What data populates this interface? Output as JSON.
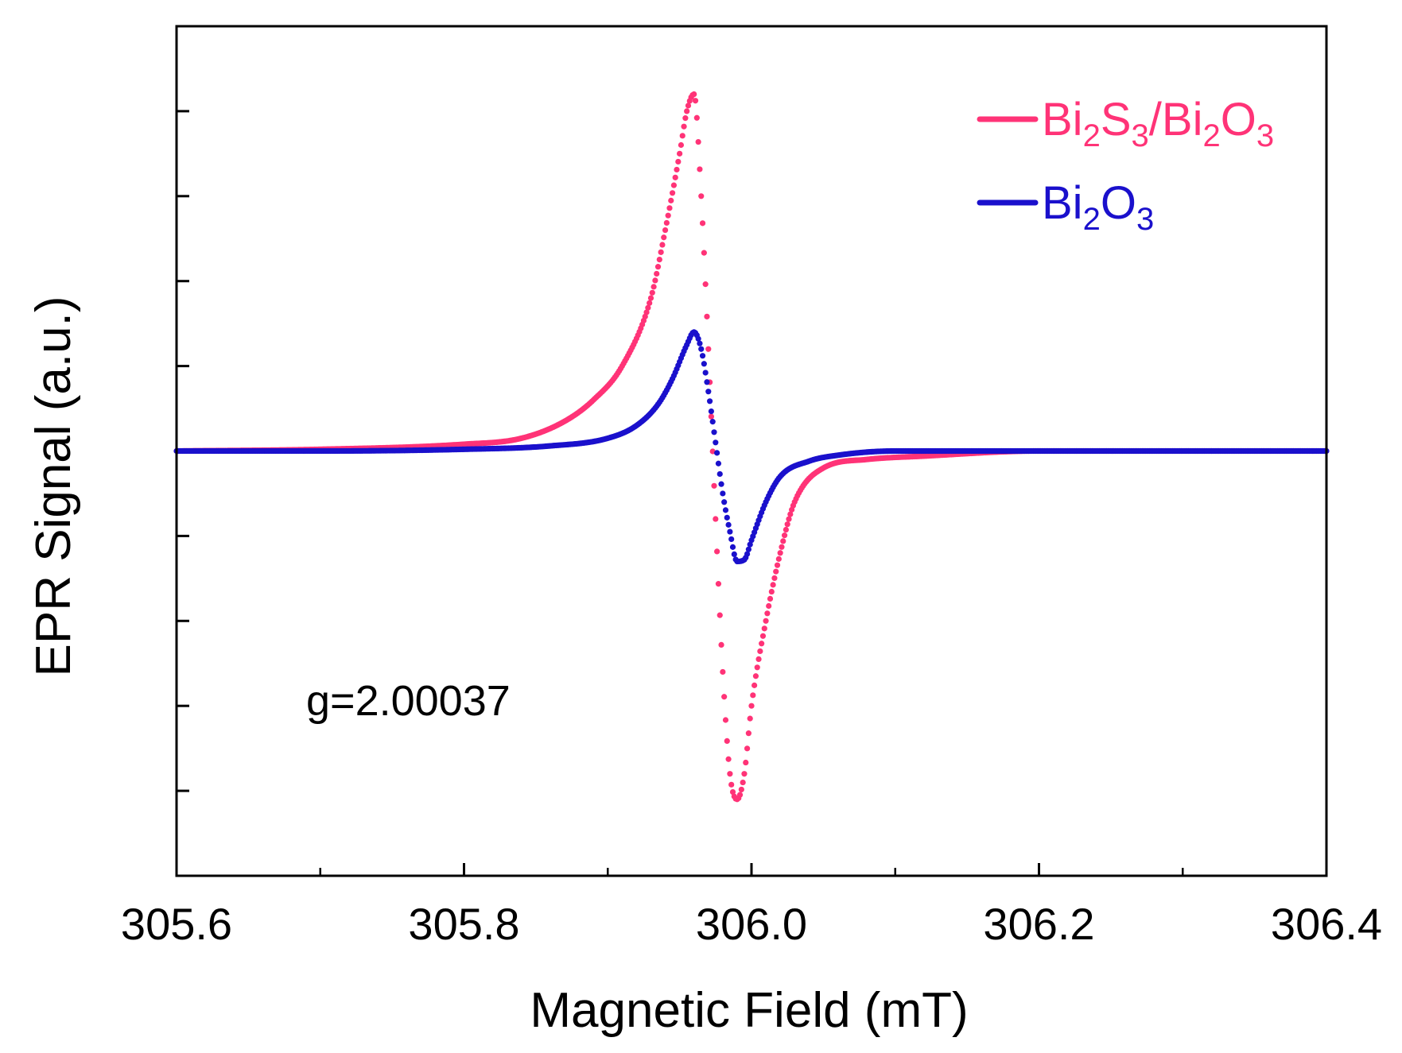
{
  "chart_data": {
    "type": "line",
    "title": "",
    "xlabel": "Magnetic Field (mT)",
    "ylabel": "EPR Signal (a.u.)",
    "xlim": [
      305.6,
      306.4
    ],
    "ylim": [
      -5,
      5
    ],
    "x_ticks": [
      305.6,
      305.8,
      306.0,
      306.2,
      306.4
    ],
    "x_tick_labels": [
      "305.6",
      "305.8",
      "306.0",
      "306.2",
      "306.4"
    ],
    "x_minor_ticks": [
      305.7,
      305.9,
      306.1,
      306.3
    ],
    "y_ticks": [
      4,
      3,
      2,
      1,
      -1,
      -2,
      -3,
      -4
    ],
    "y_tick_labels_shown": false,
    "grid": false,
    "legend_position": "top-right",
    "annotation": "g=2.00037",
    "series": [
      {
        "name": "Bi2S3/Bi2O3",
        "color": "#ff3377",
        "x": [
          305.6,
          305.7,
          305.8,
          305.84,
          305.87,
          305.89,
          305.91,
          305.93,
          305.94,
          305.95,
          305.955,
          305.96,
          305.965,
          305.97,
          305.975,
          305.98,
          305.985,
          305.99,
          305.995,
          306.0,
          306.01,
          306.02,
          306.03,
          306.05,
          306.08,
          306.12,
          306.2,
          306.3,
          306.4
        ],
        "y": [
          0,
          0.02,
          0.08,
          0.15,
          0.35,
          0.6,
          1.0,
          1.8,
          2.6,
          3.5,
          4.0,
          4.2,
          3.0,
          1.2,
          -0.8,
          -2.6,
          -3.8,
          -4.1,
          -3.8,
          -3.0,
          -2.0,
          -1.2,
          -0.6,
          -0.2,
          -0.1,
          -0.06,
          0,
          0,
          0
        ]
      },
      {
        "name": "Bi2O3",
        "color": "#1a10cc",
        "x": [
          305.6,
          305.7,
          305.8,
          305.86,
          305.9,
          305.92,
          305.935,
          305.945,
          305.955,
          305.96,
          305.965,
          305.97,
          305.975,
          305.98,
          305.985,
          305.99,
          305.995,
          306.0,
          306.01,
          306.02,
          306.04,
          306.06,
          306.1,
          306.2,
          306.3,
          306.4
        ],
        "y": [
          0,
          0,
          0.02,
          0.06,
          0.15,
          0.3,
          0.55,
          0.85,
          1.25,
          1.4,
          1.2,
          0.7,
          0.1,
          -0.5,
          -0.95,
          -1.3,
          -1.28,
          -1.05,
          -0.6,
          -0.3,
          -0.12,
          -0.05,
          0,
          0,
          0,
          0
        ]
      }
    ]
  },
  "legend": {
    "entries": [
      {
        "parts": [
          {
            "t": "Bi",
            "sub": false
          },
          {
            "t": "2",
            "sub": true
          },
          {
            "t": "S",
            "sub": false
          },
          {
            "t": "3",
            "sub": true
          },
          {
            "t": "/Bi",
            "sub": false
          },
          {
            "t": "2",
            "sub": true
          },
          {
            "t": "O",
            "sub": false
          },
          {
            "t": "3",
            "sub": true
          }
        ]
      },
      {
        "parts": [
          {
            "t": "Bi",
            "sub": false
          },
          {
            "t": "2",
            "sub": true
          },
          {
            "t": "O",
            "sub": false
          },
          {
            "t": "3",
            "sub": true
          }
        ]
      }
    ]
  }
}
